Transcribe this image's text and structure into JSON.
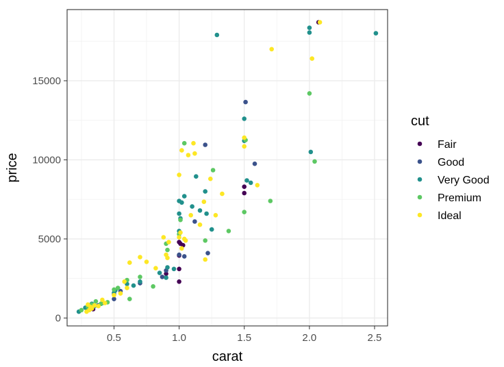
{
  "chart_data": {
    "type": "scatter",
    "title": "",
    "xlabel": "carat",
    "ylabel": "price",
    "xlim": [
      0.14,
      2.6
    ],
    "ylim": [
      -500,
      19500
    ],
    "x_ticks": [
      0.5,
      1.0,
      1.5,
      2.0,
      2.5
    ],
    "x_tick_labels": [
      "0.5",
      "1.0",
      "1.5",
      "2.0",
      "2.5"
    ],
    "x_minor_ticks": [
      0.25,
      0.75,
      1.25,
      1.75,
      2.25
    ],
    "y_ticks": [
      0,
      5000,
      10000,
      15000
    ],
    "y_tick_labels": [
      "0",
      "5000",
      "10000",
      "15000"
    ],
    "y_minor_ticks": [
      2500,
      7500,
      12500,
      17500
    ],
    "grid": true,
    "theme": "bw",
    "legend": {
      "title": "cut",
      "position": "right"
    },
    "series": [
      {
        "name": "Fair",
        "color": "#440154",
        "points": [
          [
            0.3,
            550
          ],
          [
            0.34,
            560
          ],
          [
            0.9,
            2800
          ],
          [
            1.0,
            2300
          ],
          [
            1.0,
            3100
          ],
          [
            1.0,
            3950
          ],
          [
            1.0,
            4800
          ],
          [
            1.01,
            4700
          ],
          [
            1.03,
            4600
          ],
          [
            1.5,
            7900
          ],
          [
            1.5,
            8300
          ],
          [
            2.07,
            18700
          ]
        ]
      },
      {
        "name": "Good",
        "color": "#3B528B",
        "points": [
          [
            0.3,
            600
          ],
          [
            0.34,
            700
          ],
          [
            0.38,
            800
          ],
          [
            0.41,
            950
          ],
          [
            0.5,
            1200
          ],
          [
            0.5,
            1500
          ],
          [
            0.55,
            1700
          ],
          [
            0.7,
            2200
          ],
          [
            0.87,
            2600
          ],
          [
            0.9,
            3000
          ],
          [
            1.0,
            4000
          ],
          [
            1.04,
            3900
          ],
          [
            1.12,
            6100
          ],
          [
            1.2,
            10950
          ],
          [
            1.22,
            4100
          ],
          [
            1.51,
            13650
          ],
          [
            1.58,
            9750
          ]
        ]
      },
      {
        "name": "Very Good",
        "color": "#21908C",
        "points": [
          [
            0.23,
            400
          ],
          [
            0.28,
            650
          ],
          [
            0.3,
            600
          ],
          [
            0.31,
            800
          ],
          [
            0.33,
            900
          ],
          [
            0.35,
            750
          ],
          [
            0.4,
            900
          ],
          [
            0.5,
            1600
          ],
          [
            0.51,
            1750
          ],
          [
            0.6,
            2150
          ],
          [
            0.65,
            2050
          ],
          [
            0.7,
            2300
          ],
          [
            0.85,
            2850
          ],
          [
            0.9,
            2550
          ],
          [
            0.91,
            3200
          ],
          [
            0.96,
            3100
          ],
          [
            1.0,
            6600
          ],
          [
            1.0,
            7400
          ],
          [
            1.0,
            5500
          ],
          [
            1.01,
            6300
          ],
          [
            1.02,
            7300
          ],
          [
            1.04,
            7700
          ],
          [
            1.1,
            7050
          ],
          [
            1.13,
            8950
          ],
          [
            1.16,
            6800
          ],
          [
            1.2,
            8000
          ],
          [
            1.21,
            6600
          ],
          [
            1.25,
            5600
          ],
          [
            1.29,
            17900
          ],
          [
            1.5,
            11200
          ],
          [
            1.5,
            12600
          ],
          [
            1.52,
            8700
          ],
          [
            1.55,
            8550
          ],
          [
            2.0,
            18050
          ],
          [
            2.0,
            18350
          ],
          [
            2.01,
            10500
          ],
          [
            2.51,
            18000
          ]
        ]
      },
      {
        "name": "Premium",
        "color": "#5DC863",
        "points": [
          [
            0.25,
            500
          ],
          [
            0.3,
            700
          ],
          [
            0.33,
            850
          ],
          [
            0.36,
            1050
          ],
          [
            0.4,
            900
          ],
          [
            0.45,
            1000
          ],
          [
            0.5,
            1800
          ],
          [
            0.53,
            1900
          ],
          [
            0.6,
            2400
          ],
          [
            0.62,
            1200
          ],
          [
            0.7,
            2600
          ],
          [
            0.8,
            2000
          ],
          [
            0.9,
            4700
          ],
          [
            0.91,
            4300
          ],
          [
            1.0,
            5300
          ],
          [
            1.01,
            6200
          ],
          [
            1.04,
            11050
          ],
          [
            1.2,
            4900
          ],
          [
            1.26,
            9350
          ],
          [
            1.38,
            5500
          ],
          [
            1.5,
            6700
          ],
          [
            1.51,
            11250
          ],
          [
            1.7,
            7400
          ],
          [
            2.0,
            14200
          ],
          [
            2.04,
            9900
          ]
        ]
      },
      {
        "name": "Ideal",
        "color": "#FDE725",
        "points": [
          [
            0.29,
            400
          ],
          [
            0.3,
            850
          ],
          [
            0.31,
            500
          ],
          [
            0.32,
            700
          ],
          [
            0.33,
            600
          ],
          [
            0.35,
            800
          ],
          [
            0.38,
            750
          ],
          [
            0.41,
            1150
          ],
          [
            0.43,
            950
          ],
          [
            0.5,
            1450
          ],
          [
            0.55,
            1550
          ],
          [
            0.58,
            2300
          ],
          [
            0.6,
            1900
          ],
          [
            0.62,
            3500
          ],
          [
            0.7,
            3850
          ],
          [
            0.75,
            3550
          ],
          [
            0.82,
            3150
          ],
          [
            0.88,
            5100
          ],
          [
            0.9,
            4000
          ],
          [
            0.91,
            3800
          ],
          [
            0.92,
            4800
          ],
          [
            1.0,
            9050
          ],
          [
            1.0,
            5100
          ],
          [
            1.01,
            5400
          ],
          [
            1.02,
            10600
          ],
          [
            1.02,
            4400
          ],
          [
            1.04,
            5000
          ],
          [
            1.05,
            4900
          ],
          [
            1.07,
            10300
          ],
          [
            1.09,
            6500
          ],
          [
            1.11,
            11050
          ],
          [
            1.12,
            10400
          ],
          [
            1.16,
            5900
          ],
          [
            1.19,
            7350
          ],
          [
            1.2,
            3700
          ],
          [
            1.24,
            8800
          ],
          [
            1.28,
            6500
          ],
          [
            1.33,
            7850
          ],
          [
            1.5,
            10850
          ],
          [
            1.5,
            11400
          ],
          [
            1.6,
            8400
          ],
          [
            1.71,
            17000
          ],
          [
            2.02,
            16400
          ],
          [
            2.08,
            18700
          ]
        ]
      }
    ]
  }
}
